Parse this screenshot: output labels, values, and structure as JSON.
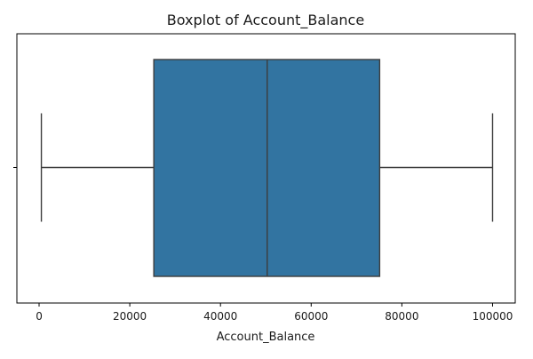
{
  "chart_data": {
    "type": "box",
    "title": "Boxplot of Account_Balance",
    "xlabel": "Account_Balance",
    "ylabel": "",
    "xlim": [
      -4900,
      105000
    ],
    "xticks": [
      0,
      20000,
      40000,
      60000,
      80000,
      100000
    ],
    "xtick_labels": [
      "0",
      "20000",
      "40000",
      "60000",
      "80000",
      "100000"
    ],
    "orientation": "horizontal",
    "grid": false,
    "box": {
      "whisker_low": 500,
      "q1": 25300,
      "median": 50300,
      "q3": 75100,
      "whisker_high": 100000
    },
    "colors": {
      "box_fill": "#3274a1",
      "line": "#3d3d3d",
      "axis": "#000000"
    }
  }
}
